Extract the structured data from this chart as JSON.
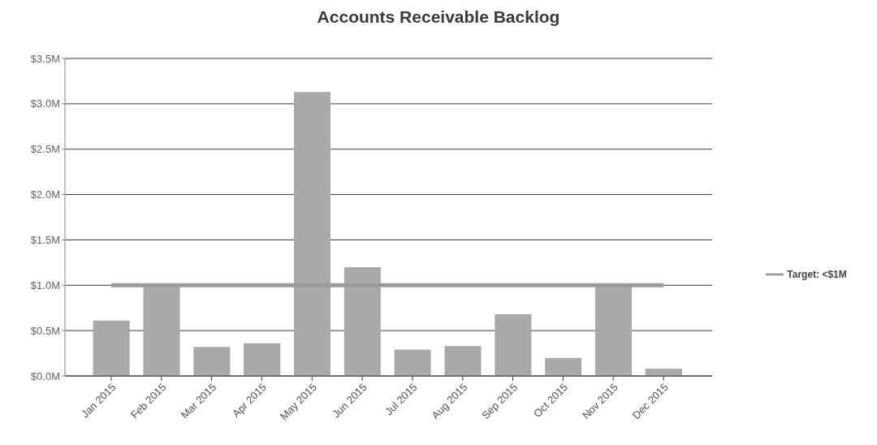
{
  "chart_data": {
    "type": "bar",
    "title": "Accounts Receivable Backlog",
    "categories": [
      "Jan 2015",
      "Feb 2015",
      "Mar 2015",
      "Apr 2015",
      "May 2015",
      "Jun 2015",
      "Jul 2015",
      "Aug 2015",
      "Sep 2015",
      "Oct 2015",
      "Nov 2015",
      "Dec 2015"
    ],
    "series": [
      {
        "color": "#a9a9a9",
        "values": [
          0.61,
          1.0,
          0.32,
          0.36,
          3.13,
          1.2,
          0.29,
          0.33,
          0.68,
          0.2,
          1.0,
          0.08
        ]
      },
      {
        "type": "line",
        "name": "Target: <$1M",
        "color": "#9a9a9a",
        "values": [
          1,
          1,
          1,
          1,
          1,
          1,
          1,
          1,
          1,
          1,
          1,
          1
        ]
      }
    ],
    "ylim": [
      0,
      3.5
    ],
    "yticks": [
      {
        "value": 0,
        "label": "$0.0M"
      },
      {
        "value": 0.5,
        "label": "$0.5M"
      },
      {
        "value": 1,
        "label": "$1.0M"
      },
      {
        "value": 1.5,
        "label": "$1.5M"
      },
      {
        "value": 2,
        "label": "$2.0M"
      },
      {
        "value": 2.5,
        "label": "$2.5M"
      },
      {
        "value": 3,
        "label": "$3.0M"
      },
      {
        "value": 3.5,
        "label": "$3.5M"
      }
    ],
    "grid": "y",
    "legend": "right",
    "marker": "none",
    "line_style": "solid"
  }
}
